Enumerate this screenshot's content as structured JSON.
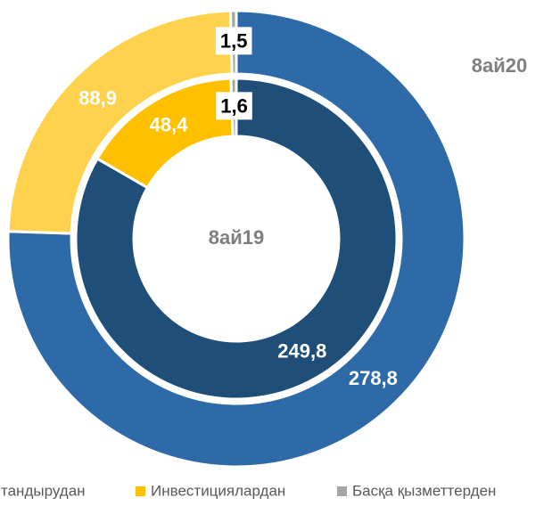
{
  "chart_data": {
    "type": "donut",
    "categories": [
      "тандырудан",
      "Инвестициялардан",
      "Басқа қызметтерден"
    ],
    "legend_colors": [
      "#2e6aa8",
      "#ffc000",
      "#a6a6a6"
    ],
    "series": [
      {
        "name": "8ай20",
        "values": [
          278.8,
          88.9,
          1.5
        ],
        "value_labels": [
          "278,8",
          "88,9",
          "1,5"
        ],
        "colors": [
          "#2e6aa8",
          "#ffd24d",
          "#a6a6a6"
        ]
      },
      {
        "name": "8ай19",
        "values": [
          249.8,
          48.4,
          1.6
        ],
        "value_labels": [
          "249,8",
          "48,4",
          "1,6"
        ],
        "colors": [
          "#1f4e79",
          "#ffc000",
          "#a6a6a6"
        ]
      }
    ],
    "legend": "bottom"
  }
}
